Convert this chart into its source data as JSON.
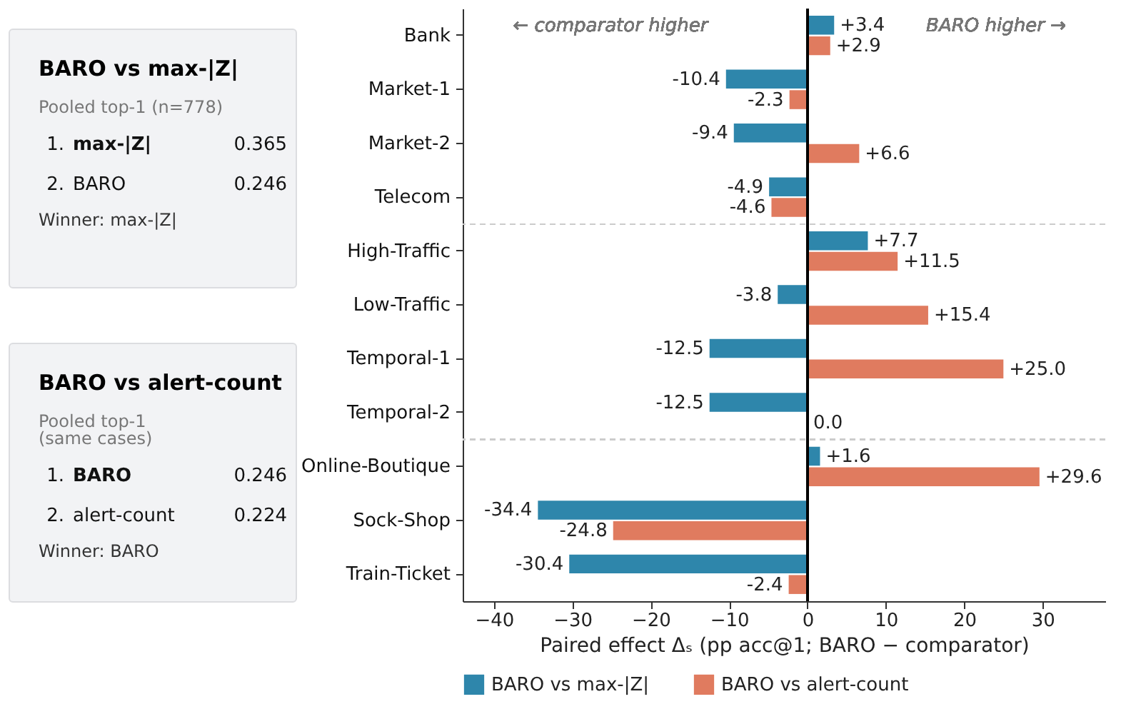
{
  "chart_data": [
    {
      "type": "other",
      "title": "BARO vs max-|Z|",
      "subtitle": "Pooled top-1 (n=778)",
      "annotations": [
        "1.",
        "max-|Z|",
        "0.365",
        "2.",
        "BARO",
        "0.246",
        "Winner: max-|Z|"
      ]
    },
    {
      "type": "other",
      "title": "BARO vs alert-count",
      "subtitle": "Pooled top-1\n(same cases)",
      "annotations": [
        "1.",
        "BARO",
        "0.246",
        "2.",
        "alert-count",
        "0.224",
        "Winner: BARO"
      ]
    },
    {
      "type": "bar",
      "orientation": "horizontal",
      "xlabel": "Paired effect Δₛ (pp acc@1; BARO − comparator)",
      "categories": [
        "Bank",
        "Market-1",
        "Market-2",
        "Telecom",
        "High-Traffic",
        "Low-Traffic",
        "Temporal-1",
        "Temporal-2",
        "Online-Boutique",
        "Sock-Shop",
        "Train-Ticket"
      ],
      "series": [
        {
          "name": "BARO vs max-|Z|",
          "color": "#2e86ab",
          "values": [
            3.4,
            -10.4,
            -9.4,
            -4.9,
            7.7,
            -3.8,
            -12.5,
            -12.5,
            1.6,
            -34.4,
            -30.4
          ],
          "value_labels": [
            "+3.4",
            "-10.4",
            "-9.4",
            "-4.9",
            "+7.7",
            "-3.8",
            "-12.5",
            "-12.5",
            "+1.6",
            "-34.4",
            "-30.4"
          ]
        },
        {
          "name": "BARO vs alert-count",
          "color": "#e07b5f",
          "values": [
            2.9,
            -2.3,
            6.6,
            -4.6,
            11.5,
            15.4,
            25.0,
            0.0,
            29.6,
            -24.8,
            -2.4
          ],
          "value_labels": [
            "+2.9",
            "-2.3",
            "+6.6",
            "-4.6",
            "+11.5",
            "+15.4",
            "+25.0",
            "0.0",
            "+29.6",
            "-24.8",
            "-2.4"
          ]
        }
      ],
      "xlim": [
        -44,
        38
      ],
      "xticks": [
        -40,
        -30,
        -20,
        -10,
        0,
        10,
        20,
        30
      ],
      "ref_lines": [
        {
          "axis": "x",
          "value": 0,
          "color": "#000000",
          "line_style": "solid"
        }
      ],
      "annotations": [
        "← comparator higher",
        "BARO higher →"
      ],
      "grid": false,
      "legend": "bottom"
    }
  ]
}
